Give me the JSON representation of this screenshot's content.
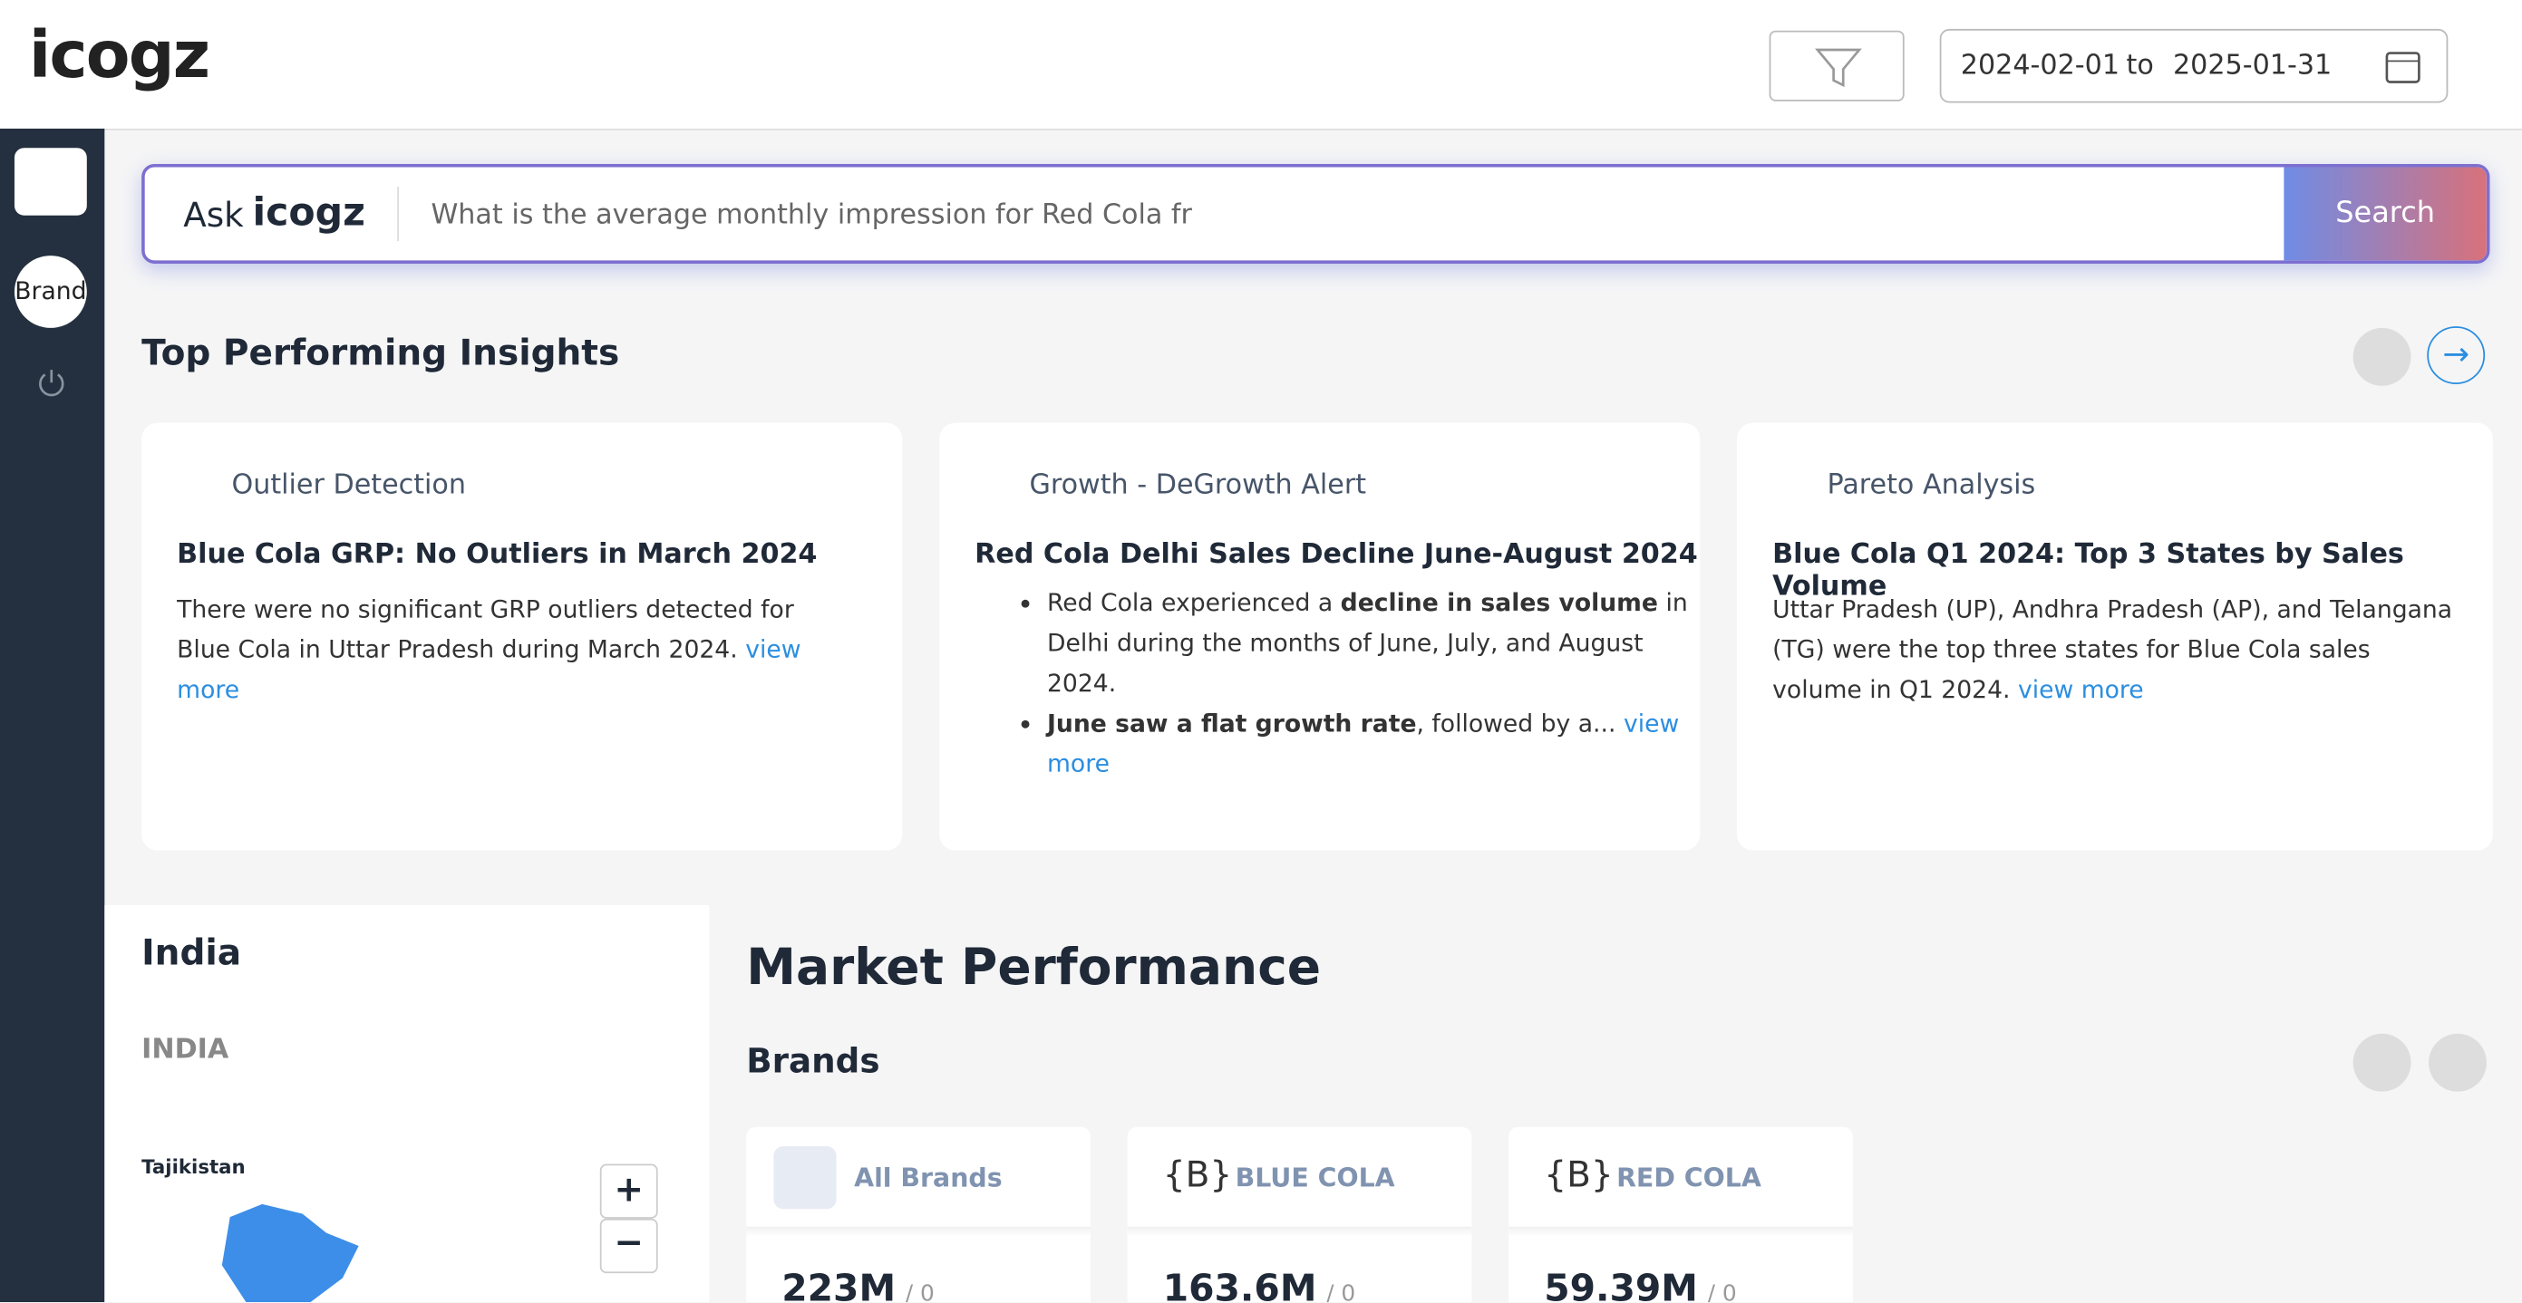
{
  "header": {
    "logo": "icogz",
    "date_from": "2024-02-01",
    "date_sep": "to",
    "date_to": "2025-01-31"
  },
  "sidebar": {
    "brand": "Brand"
  },
  "search": {
    "ask": "Ask",
    "logo": "icogz",
    "placeholder": "What is the average monthly impression for Red Cola fr",
    "button": "Search"
  },
  "insights": {
    "title": "Top Performing Insights",
    "cards": [
      {
        "category": "Outlier Detection",
        "title": "Blue Cola GRP: No Outliers in March 2024",
        "text": "There were no significant GRP outliers detected for Blue Cola in Uttar Pradesh during March 2024.",
        "link": "view more"
      },
      {
        "category": "Growth - DeGrowth Alert",
        "title": "Red Cola Delhi Sales Decline June-August 2024",
        "bullets": [
          {
            "pre": "Red Cola experienced a ",
            "bold": "decline in sales volume",
            "post": " in Delhi during the months of June, July, and August 2024."
          },
          {
            "bold": "June saw a flat growth rate",
            "post": ", followed by a...",
            "link": "view more"
          }
        ]
      },
      {
        "category": "Pareto Analysis",
        "title": "Blue Cola Q1 2024: Top 3 States by Sales Volume",
        "text": "Uttar Pradesh (UP), Andhra Pradesh (AP), and Telangana (TG) were the top three states for Blue Cola sales volume in Q1 2024.",
        "link": "view more"
      }
    ]
  },
  "map": {
    "title": "India",
    "subtitle": "INDIA",
    "label": "Tajikistan",
    "zoom_in": "+",
    "zoom_out": "−"
  },
  "market": {
    "title": "Market Performance",
    "section": "Brands",
    "brands": [
      {
        "name": "All Brands",
        "value": "223M",
        "sub": "/ 0"
      },
      {
        "icon": "{B}",
        "name": "BLUE COLA",
        "value": "163.6M",
        "sub": "/ 0"
      },
      {
        "icon": "{B}",
        "name": "RED COLA",
        "value": "59.39M",
        "sub": "/ 0"
      }
    ]
  }
}
